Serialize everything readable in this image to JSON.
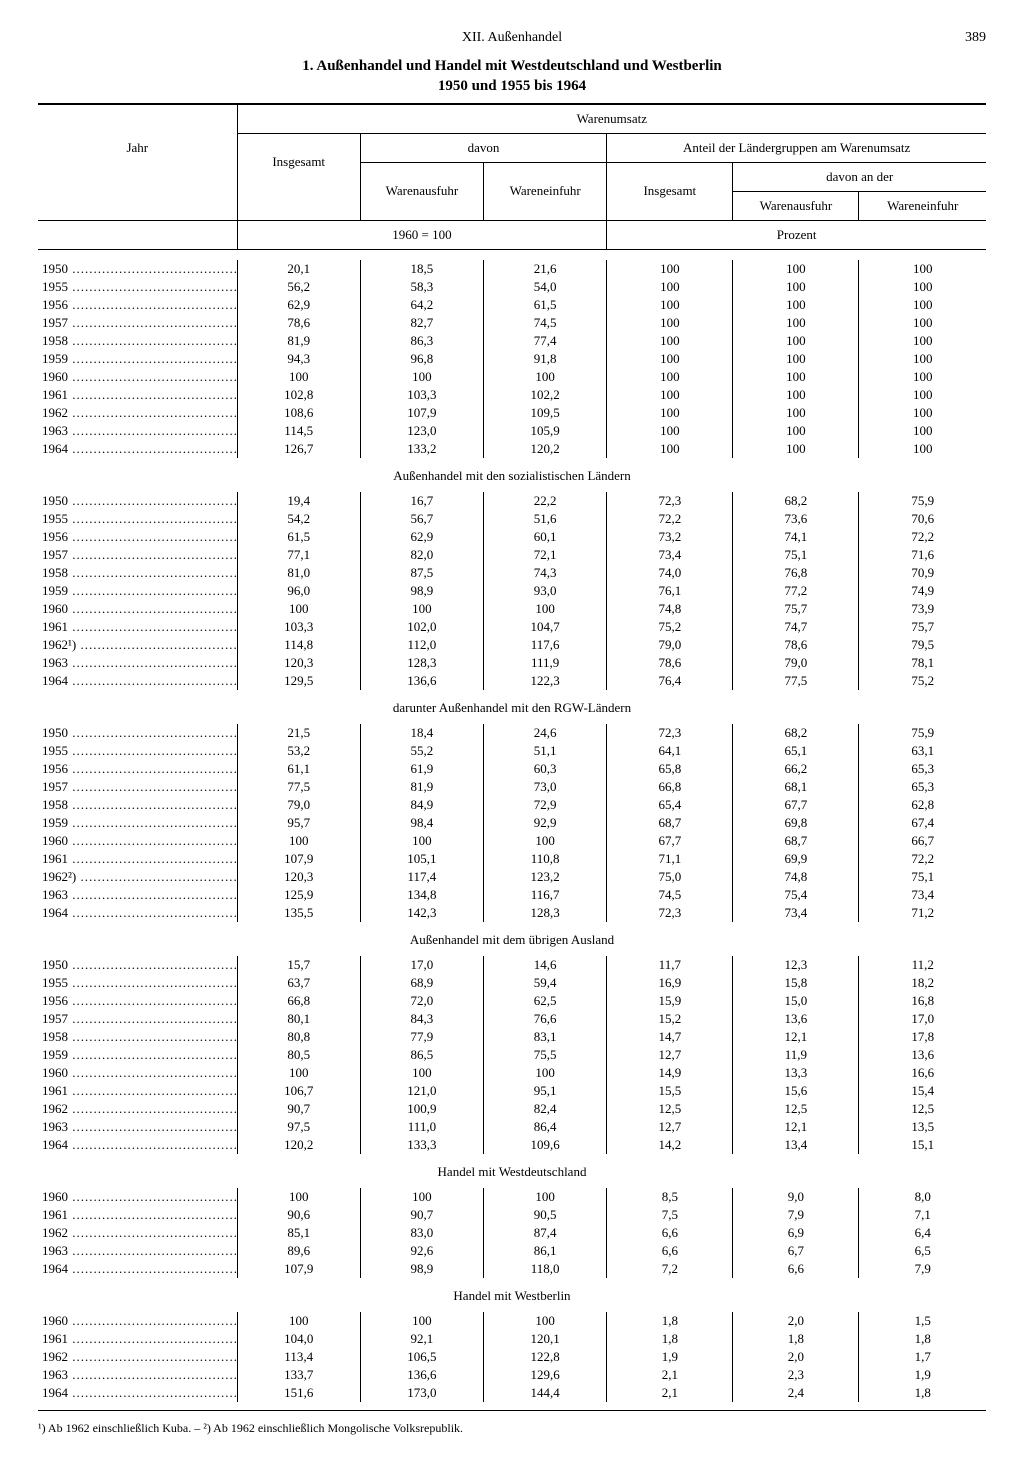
{
  "page": {
    "chapter": "XII. Außenhandel",
    "number": "389",
    "title_l1": "1. Außenhandel und Handel mit Westdeutschland und Westberlin",
    "title_l2": "1950 und 1955 bis 1964"
  },
  "header": {
    "jahr": "Jahr",
    "warenumsatz": "Warenumsatz",
    "insgesamt": "Insgesamt",
    "davon": "davon",
    "warenausfuhr": "Warenausfuhr",
    "wareneinfuhr": "Wareneinfuhr",
    "anteil": "Anteil der Ländergruppen am Warenumsatz",
    "davon_an_der": "davon an der",
    "unit_index": "1960 = 100",
    "unit_prozent": "Prozent"
  },
  "columns_pct": {
    "year": 21,
    "c1": 13,
    "c2": 13,
    "c3": 13,
    "c4": 13.3,
    "c5": 13.3,
    "c6": 13.4
  },
  "sections": [
    {
      "caption": "",
      "rows": [
        {
          "y": "1950",
          "v": [
            "20,1",
            "18,5",
            "21,6",
            "100",
            "100",
            "100"
          ]
        },
        {
          "y": "1955",
          "v": [
            "56,2",
            "58,3",
            "54,0",
            "100",
            "100",
            "100"
          ]
        },
        {
          "y": "1956",
          "v": [
            "62,9",
            "64,2",
            "61,5",
            "100",
            "100",
            "100"
          ]
        },
        {
          "y": "1957",
          "v": [
            "78,6",
            "82,7",
            "74,5",
            "100",
            "100",
            "100"
          ]
        },
        {
          "y": "1958",
          "v": [
            "81,9",
            "86,3",
            "77,4",
            "100",
            "100",
            "100"
          ]
        },
        {
          "y": "1959",
          "v": [
            "94,3",
            "96,8",
            "91,8",
            "100",
            "100",
            "100"
          ]
        },
        {
          "y": "1960",
          "v": [
            "100",
            "100",
            "100",
            "100",
            "100",
            "100"
          ]
        },
        {
          "y": "1961",
          "v": [
            "102,8",
            "103,3",
            "102,2",
            "100",
            "100",
            "100"
          ]
        },
        {
          "y": "1962",
          "v": [
            "108,6",
            "107,9",
            "109,5",
            "100",
            "100",
            "100"
          ]
        },
        {
          "y": "1963",
          "v": [
            "114,5",
            "123,0",
            "105,9",
            "100",
            "100",
            "100"
          ]
        },
        {
          "y": "1964",
          "v": [
            "126,7",
            "133,2",
            "120,2",
            "100",
            "100",
            "100"
          ]
        }
      ]
    },
    {
      "caption": "Außenhandel mit den sozialistischen Ländern",
      "rows": [
        {
          "y": "1950",
          "v": [
            "19,4",
            "16,7",
            "22,2",
            "72,3",
            "68,2",
            "75,9"
          ]
        },
        {
          "y": "1955",
          "v": [
            "54,2",
            "56,7",
            "51,6",
            "72,2",
            "73,6",
            "70,6"
          ]
        },
        {
          "y": "1956",
          "v": [
            "61,5",
            "62,9",
            "60,1",
            "73,2",
            "74,1",
            "72,2"
          ]
        },
        {
          "y": "1957",
          "v": [
            "77,1",
            "82,0",
            "72,1",
            "73,4",
            "75,1",
            "71,6"
          ]
        },
        {
          "y": "1958",
          "v": [
            "81,0",
            "87,5",
            "74,3",
            "74,0",
            "76,8",
            "70,9"
          ]
        },
        {
          "y": "1959",
          "v": [
            "96,0",
            "98,9",
            "93,0",
            "76,1",
            "77,2",
            "74,9"
          ]
        },
        {
          "y": "1960",
          "v": [
            "100",
            "100",
            "100",
            "74,8",
            "75,7",
            "73,9"
          ]
        },
        {
          "y": "1961",
          "v": [
            "103,3",
            "102,0",
            "104,7",
            "75,2",
            "74,7",
            "75,7"
          ]
        },
        {
          "y": "1962¹)",
          "v": [
            "114,8",
            "112,0",
            "117,6",
            "79,0",
            "78,6",
            "79,5"
          ]
        },
        {
          "y": "1963",
          "v": [
            "120,3",
            "128,3",
            "111,9",
            "78,6",
            "79,0",
            "78,1"
          ]
        },
        {
          "y": "1964",
          "v": [
            "129,5",
            "136,6",
            "122,3",
            "76,4",
            "77,5",
            "75,2"
          ]
        }
      ]
    },
    {
      "caption": "darunter Außenhandel mit den RGW-Ländern",
      "rows": [
        {
          "y": "1950",
          "v": [
            "21,5",
            "18,4",
            "24,6",
            "72,3",
            "68,2",
            "75,9"
          ]
        },
        {
          "y": "1955",
          "v": [
            "53,2",
            "55,2",
            "51,1",
            "64,1",
            "65,1",
            "63,1"
          ]
        },
        {
          "y": "1956",
          "v": [
            "61,1",
            "61,9",
            "60,3",
            "65,8",
            "66,2",
            "65,3"
          ]
        },
        {
          "y": "1957",
          "v": [
            "77,5",
            "81,9",
            "73,0",
            "66,8",
            "68,1",
            "65,3"
          ]
        },
        {
          "y": "1958",
          "v": [
            "79,0",
            "84,9",
            "72,9",
            "65,4",
            "67,7",
            "62,8"
          ]
        },
        {
          "y": "1959",
          "v": [
            "95,7",
            "98,4",
            "92,9",
            "68,7",
            "69,8",
            "67,4"
          ]
        },
        {
          "y": "1960",
          "v": [
            "100",
            "100",
            "100",
            "67,7",
            "68,7",
            "66,7"
          ]
        },
        {
          "y": "1961",
          "v": [
            "107,9",
            "105,1",
            "110,8",
            "71,1",
            "69,9",
            "72,2"
          ]
        },
        {
          "y": "1962²)",
          "v": [
            "120,3",
            "117,4",
            "123,2",
            "75,0",
            "74,8",
            "75,1"
          ]
        },
        {
          "y": "1963",
          "v": [
            "125,9",
            "134,8",
            "116,7",
            "74,5",
            "75,4",
            "73,4"
          ]
        },
        {
          "y": "1964",
          "v": [
            "135,5",
            "142,3",
            "128,3",
            "72,3",
            "73,4",
            "71,2"
          ]
        }
      ]
    },
    {
      "caption": "Außenhandel mit dem übrigen Ausland",
      "rows": [
        {
          "y": "1950",
          "v": [
            "15,7",
            "17,0",
            "14,6",
            "11,7",
            "12,3",
            "11,2"
          ]
        },
        {
          "y": "1955",
          "v": [
            "63,7",
            "68,9",
            "59,4",
            "16,9",
            "15,8",
            "18,2"
          ]
        },
        {
          "y": "1956",
          "v": [
            "66,8",
            "72,0",
            "62,5",
            "15,9",
            "15,0",
            "16,8"
          ]
        },
        {
          "y": "1957",
          "v": [
            "80,1",
            "84,3",
            "76,6",
            "15,2",
            "13,6",
            "17,0"
          ]
        },
        {
          "y": "1958",
          "v": [
            "80,8",
            "77,9",
            "83,1",
            "14,7",
            "12,1",
            "17,8"
          ]
        },
        {
          "y": "1959",
          "v": [
            "80,5",
            "86,5",
            "75,5",
            "12,7",
            "11,9",
            "13,6"
          ]
        },
        {
          "y": "1960",
          "v": [
            "100",
            "100",
            "100",
            "14,9",
            "13,3",
            "16,6"
          ]
        },
        {
          "y": "1961",
          "v": [
            "106,7",
            "121,0",
            "95,1",
            "15,5",
            "15,6",
            "15,4"
          ]
        },
        {
          "y": "1962",
          "v": [
            "90,7",
            "100,9",
            "82,4",
            "12,5",
            "12,5",
            "12,5"
          ]
        },
        {
          "y": "1963",
          "v": [
            "97,5",
            "111,0",
            "86,4",
            "12,7",
            "12,1",
            "13,5"
          ]
        },
        {
          "y": "1964",
          "v": [
            "120,2",
            "133,3",
            "109,6",
            "14,2",
            "13,4",
            "15,1"
          ]
        }
      ]
    },
    {
      "caption": "Handel mit Westdeutschland",
      "rows": [
        {
          "y": "1960",
          "v": [
            "100",
            "100",
            "100",
            "8,5",
            "9,0",
            "8,0"
          ]
        },
        {
          "y": "1961",
          "v": [
            "90,6",
            "90,7",
            "90,5",
            "7,5",
            "7,9",
            "7,1"
          ]
        },
        {
          "y": "1962",
          "v": [
            "85,1",
            "83,0",
            "87,4",
            "6,6",
            "6,9",
            "6,4"
          ]
        },
        {
          "y": "1963",
          "v": [
            "89,6",
            "92,6",
            "86,1",
            "6,6",
            "6,7",
            "6,5"
          ]
        },
        {
          "y": "1964",
          "v": [
            "107,9",
            "98,9",
            "118,0",
            "7,2",
            "6,6",
            "7,9"
          ]
        }
      ]
    },
    {
      "caption": "Handel mit Westberlin",
      "rows": [
        {
          "y": "1960",
          "v": [
            "100",
            "100",
            "100",
            "1,8",
            "2,0",
            "1,5"
          ]
        },
        {
          "y": "1961",
          "v": [
            "104,0",
            "92,1",
            "120,1",
            "1,8",
            "1,8",
            "1,8"
          ]
        },
        {
          "y": "1962",
          "v": [
            "113,4",
            "106,5",
            "122,8",
            "1,9",
            "2,0",
            "1,7"
          ]
        },
        {
          "y": "1963",
          "v": [
            "133,7",
            "136,6",
            "129,6",
            "2,1",
            "2,3",
            "1,9"
          ]
        },
        {
          "y": "1964",
          "v": [
            "151,6",
            "173,0",
            "144,4",
            "2,1",
            "2,4",
            "1,8"
          ]
        }
      ]
    }
  ],
  "footnote": "¹) Ab 1962 einschließlich Kuba. – ²) Ab 1962 einschließlich Mongolische Volksrepublik."
}
